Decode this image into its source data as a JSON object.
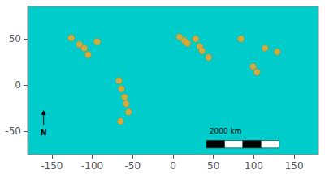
{
  "chart_data": {
    "type": "scatter",
    "x": [
      -126,
      -116,
      -110,
      -105,
      -94,
      -67,
      -64,
      -60,
      -58,
      -55,
      -65,
      8,
      14,
      18,
      28,
      33,
      36,
      44,
      84,
      99,
      104,
      114,
      129
    ],
    "values": [
      51,
      44,
      40,
      33,
      47,
      5,
      -4,
      -13,
      -20,
      -29,
      -39,
      52,
      48,
      45,
      50,
      42,
      37,
      30,
      50,
      20,
      14,
      40,
      36
    ],
    "color": "#FFA520",
    "xlim": [
      -180,
      180
    ],
    "ylim": [
      -75,
      85
    ],
    "xticks": [
      -150,
      -100,
      -50,
      0,
      50,
      100,
      150
    ],
    "yticks": [
      -50,
      0,
      50
    ],
    "grid": false,
    "annotations": [
      "N",
      "2000 km"
    ]
  }
}
